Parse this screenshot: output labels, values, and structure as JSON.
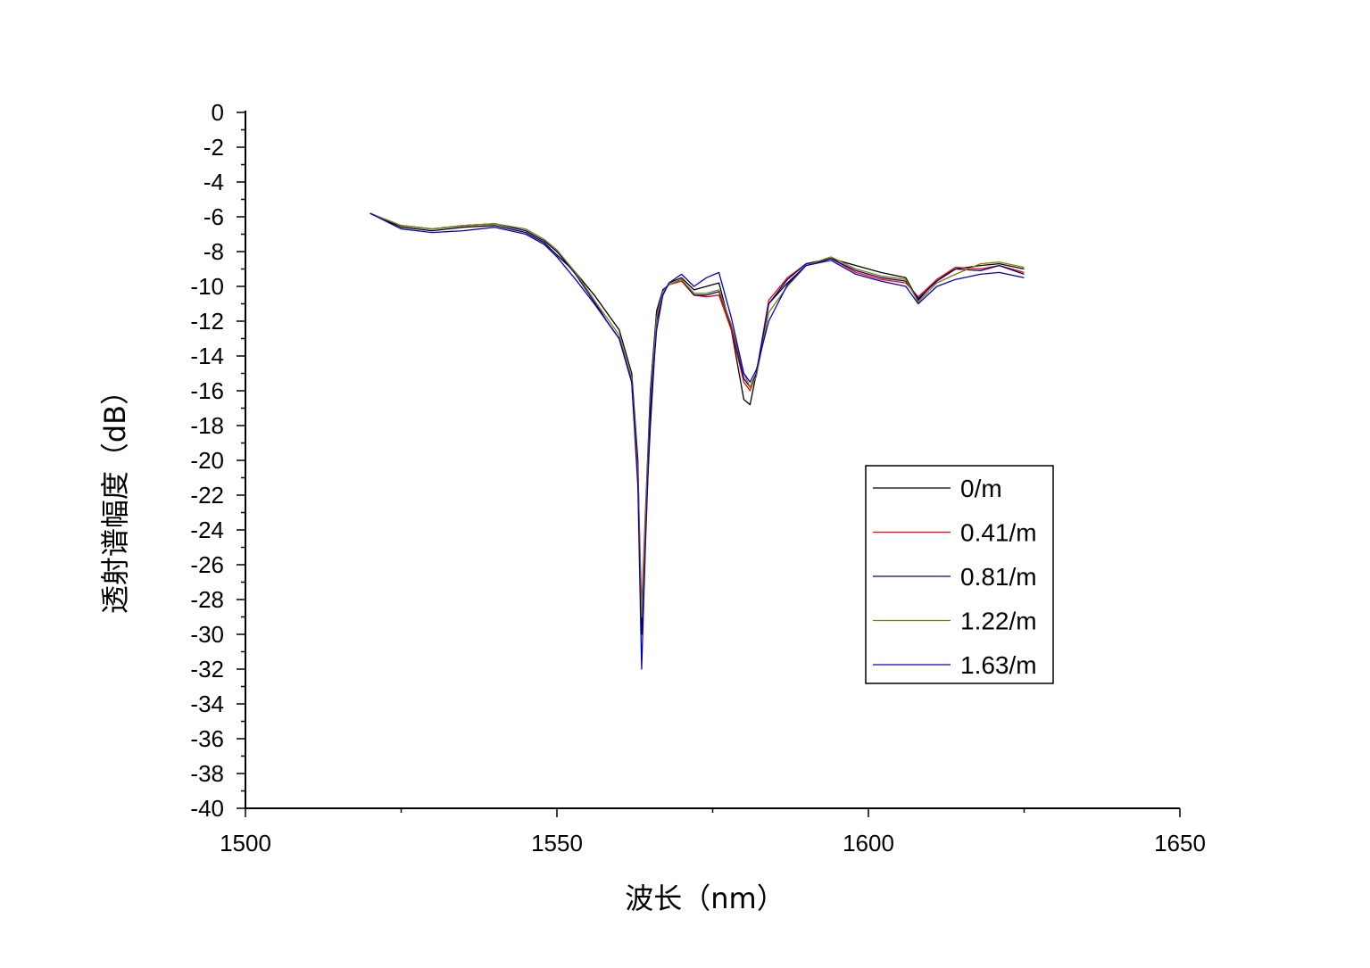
{
  "chart_data": {
    "type": "line",
    "xlabel": "波长（nm）",
    "ylabel": "透射谱幅度（dB）",
    "xlim": [
      1500,
      1650
    ],
    "ylim": [
      -40,
      0
    ],
    "x_ticks": [
      1500,
      1550,
      1600,
      1650
    ],
    "y_ticks": [
      0,
      -2,
      -4,
      -6,
      -8,
      -10,
      -12,
      -14,
      -16,
      -18,
      -20,
      -22,
      -24,
      -26,
      -28,
      -30,
      -32,
      -34,
      -36,
      -38,
      -40
    ],
    "x_tick_labels": [
      "1500",
      "1550",
      "1600",
      "1650"
    ],
    "y_tick_labels": [
      "0",
      "-2",
      "-4",
      "-6",
      "-8",
      "-10",
      "-12",
      "-14",
      "-16",
      "-18",
      "-20",
      "-22",
      "-24",
      "-26",
      "-28",
      "-30",
      "-32",
      "-34",
      "-36",
      "-38",
      "-40"
    ],
    "grid": false,
    "legend_position": "right",
    "x": [
      1520,
      1525,
      1530,
      1535,
      1540,
      1545,
      1548,
      1550,
      1553,
      1556,
      1558,
      1560,
      1562,
      1563,
      1563.6,
      1564.2,
      1565,
      1566,
      1567,
      1568,
      1570,
      1572,
      1574,
      1576,
      1578,
      1580,
      1581,
      1582,
      1584,
      1587,
      1590,
      1594,
      1598,
      1602,
      1606,
      1608,
      1611,
      1614,
      1618,
      1621,
      1625
    ],
    "series": [
      {
        "name": "0/m",
        "color": "#000000",
        "values": [
          -5.8,
          -6.6,
          -6.8,
          -6.6,
          -6.5,
          -6.9,
          -7.5,
          -8.2,
          -9.2,
          -10.5,
          -11.5,
          -12.5,
          -15.0,
          -20.0,
          -30.0,
          -24.0,
          -18.0,
          -12.0,
          -10.5,
          -9.8,
          -9.5,
          -10.2,
          -10.0,
          -9.8,
          -12.5,
          -16.5,
          -16.8,
          -15.0,
          -11.0,
          -9.8,
          -8.8,
          -8.4,
          -8.8,
          -9.2,
          -9.5,
          -10.8,
          -9.6,
          -9.0,
          -8.8,
          -8.7,
          -9.0
        ]
      },
      {
        "name": "0.41/m",
        "color": "#ff0000",
        "values": [
          -5.8,
          -6.5,
          -6.7,
          -6.5,
          -6.4,
          -6.8,
          -7.4,
          -8.0,
          -9.2,
          -10.8,
          -12.0,
          -13.0,
          -15.5,
          -20.5,
          -28.5,
          -23.0,
          -16.0,
          -11.5,
          -10.2,
          -9.9,
          -9.7,
          -10.5,
          -10.6,
          -10.5,
          -12.5,
          -15.5,
          -16.0,
          -15.0,
          -10.8,
          -9.5,
          -8.7,
          -8.4,
          -9.2,
          -9.6,
          -9.8,
          -10.6,
          -9.6,
          -8.9,
          -9.0,
          -8.8,
          -9.2
        ]
      },
      {
        "name": "0.81/m",
        "color": "#00008b",
        "values": [
          -5.8,
          -6.5,
          -6.7,
          -6.5,
          -6.4,
          -6.8,
          -7.4,
          -8.0,
          -9.3,
          -10.9,
          -12.0,
          -13.0,
          -15.5,
          -21.0,
          -29.5,
          -23.5,
          -16.0,
          -11.4,
          -10.2,
          -9.9,
          -9.6,
          -10.5,
          -10.5,
          -10.3,
          -12.3,
          -15.3,
          -15.8,
          -15.0,
          -11.0,
          -9.6,
          -8.7,
          -8.4,
          -9.1,
          -9.5,
          -9.7,
          -10.7,
          -9.7,
          -9.0,
          -9.1,
          -8.8,
          -9.3
        ]
      },
      {
        "name": "1.22/m",
        "color": "#808000",
        "values": [
          -5.8,
          -6.5,
          -6.7,
          -6.5,
          -6.4,
          -6.7,
          -7.3,
          -7.9,
          -9.2,
          -10.8,
          -11.8,
          -12.8,
          -15.3,
          -21.0,
          -29.0,
          -23.5,
          -16.5,
          -11.8,
          -10.3,
          -9.9,
          -9.6,
          -10.4,
          -10.4,
          -10.2,
          -12.2,
          -15.0,
          -15.8,
          -15.2,
          -11.5,
          -10.0,
          -8.8,
          -8.3,
          -9.0,
          -9.4,
          -9.6,
          -10.9,
          -9.8,
          -9.3,
          -8.7,
          -8.6,
          -8.9
        ]
      },
      {
        "name": "1.63/m",
        "color": "#0000cd",
        "values": [
          -5.8,
          -6.7,
          -6.9,
          -6.8,
          -6.6,
          -7.0,
          -7.6,
          -8.3,
          -9.6,
          -11.0,
          -12.0,
          -13.0,
          -15.5,
          -21.5,
          -32.0,
          -25.0,
          -17.0,
          -12.5,
          -10.5,
          -9.8,
          -9.3,
          -10.0,
          -9.5,
          -9.2,
          -11.8,
          -15.0,
          -15.5,
          -14.8,
          -12.0,
          -9.9,
          -8.8,
          -8.5,
          -9.3,
          -9.7,
          -10.0,
          -11.0,
          -10.0,
          -9.6,
          -9.3,
          -9.2,
          -9.5
        ]
      }
    ]
  }
}
